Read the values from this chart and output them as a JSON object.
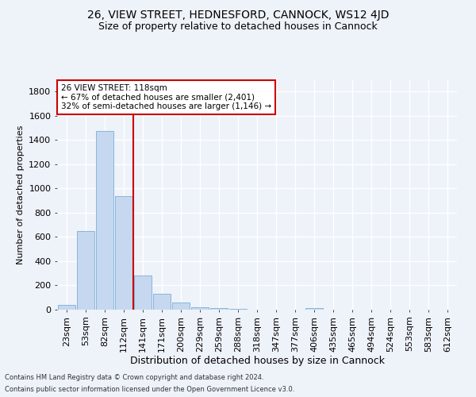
{
  "title": "26, VIEW STREET, HEDNESFORD, CANNOCK, WS12 4JD",
  "subtitle": "Size of property relative to detached houses in Cannock",
  "xlabel": "Distribution of detached houses by size in Cannock",
  "ylabel": "Number of detached properties",
  "categories": [
    "23sqm",
    "53sqm",
    "82sqm",
    "112sqm",
    "141sqm",
    "171sqm",
    "200sqm",
    "229sqm",
    "259sqm",
    "288sqm",
    "318sqm",
    "347sqm",
    "377sqm",
    "406sqm",
    "435sqm",
    "465sqm",
    "494sqm",
    "524sqm",
    "553sqm",
    "583sqm",
    "612sqm"
  ],
  "values": [
    38,
    648,
    1472,
    940,
    282,
    128,
    62,
    22,
    12,
    8,
    2,
    0,
    0,
    14,
    0,
    0,
    0,
    0,
    0,
    0,
    0
  ],
  "bar_color": "#c5d8f0",
  "bar_edge_color": "#7aafd4",
  "vline_x_index": 3.5,
  "vline_color": "#cc0000",
  "annotation_text": "26 VIEW STREET: 118sqm\n← 67% of detached houses are smaller (2,401)\n32% of semi-detached houses are larger (1,146) →",
  "annotation_box_color": "#ffffff",
  "annotation_box_edge": "#cc0000",
  "ylim": [
    0,
    1900
  ],
  "yticks": [
    0,
    200,
    400,
    600,
    800,
    1000,
    1200,
    1400,
    1600,
    1800
  ],
  "background_color": "#eef2f9",
  "grid_color": "#ffffff",
  "footer_line1": "Contains HM Land Registry data © Crown copyright and database right 2024.",
  "footer_line2": "Contains public sector information licensed under the Open Government Licence v3.0.",
  "title_fontsize": 10,
  "subtitle_fontsize": 9,
  "ylabel_fontsize": 8,
  "xlabel_fontsize": 9,
  "tick_fontsize": 8,
  "annotation_fontsize": 7.5
}
